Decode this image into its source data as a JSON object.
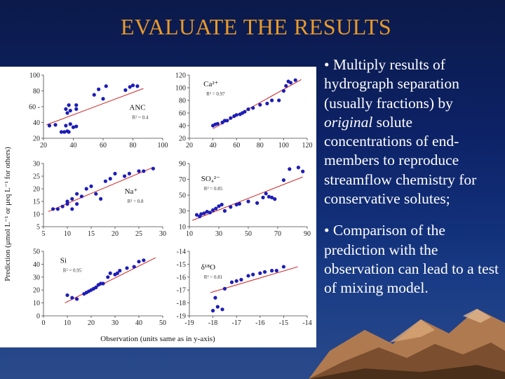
{
  "slide": {
    "title": "EVALUATE THE RESULTS",
    "bullets": [
      [
        "•  Multiply results of hydrograph separation (usually fractions) by ",
        {
          "em": "original"
        },
        " solute concentrations of end-members to reproduce streamflow chemistry for conservative solutes;"
      ],
      [
        "• Comparison of the prediction with the observation can lead to a test of mixing model."
      ]
    ],
    "colors": {
      "title": "#e89a2a",
      "text": "#ffffff",
      "points": "#1d1db8",
      "fit_line": "#cc2222",
      "background": "#0d2266"
    }
  },
  "figure": {
    "y_axis_label": "Prediction (μmol L⁻¹ or μeq L⁻¹ for others)",
    "x_axis_label": "Observation (units same as in y-axis)"
  },
  "chart_data": [
    {
      "type": "scatter",
      "label": "ANC",
      "r2": "R² = 0.4",
      "xlim": [
        20,
        100
      ],
      "ylim": [
        20,
        100
      ],
      "xticks": [
        "20",
        "40",
        "60",
        "80",
        "100"
      ],
      "yticks": [
        "20",
        "40",
        "60 -",
        "80",
        "100"
      ],
      "fit": [
        [
          22,
          37
        ],
        [
          87,
          83
        ]
      ],
      "points": [
        [
          24,
          36
        ],
        [
          28,
          37
        ],
        [
          32,
          28
        ],
        [
          34,
          28
        ],
        [
          36,
          29
        ],
        [
          37,
          28
        ],
        [
          35,
          36
        ],
        [
          38,
          38
        ],
        [
          40,
          34
        ],
        [
          42,
          35
        ],
        [
          35,
          57
        ],
        [
          38,
          55
        ],
        [
          42,
          57
        ],
        [
          36,
          52
        ],
        [
          37,
          62
        ],
        [
          42,
          62
        ],
        [
          54,
          75
        ],
        [
          60,
          70
        ],
        [
          57,
          82
        ],
        [
          62,
          86
        ],
        [
          75,
          81
        ],
        [
          78,
          85
        ],
        [
          80,
          87
        ],
        [
          83,
          86
        ]
      ]
    },
    {
      "type": "scatter",
      "label": "Ca²⁺",
      "r2": "R² = 0.97",
      "xlim": [
        20,
        120
      ],
      "ylim": [
        20,
        120
      ],
      "xticks": [
        "20",
        "40",
        "60",
        "80",
        "100",
        "120"
      ],
      "yticks": [
        "20",
        "40",
        "60",
        "80",
        "100",
        "120"
      ],
      "fit": [
        [
          40,
          35
        ],
        [
          115,
          113
        ]
      ],
      "points": [
        [
          40,
          40
        ],
        [
          42,
          42
        ],
        [
          44,
          43
        ],
        [
          48,
          45
        ],
        [
          50,
          48
        ],
        [
          52,
          48
        ],
        [
          55,
          52
        ],
        [
          58,
          55
        ],
        [
          60,
          57
        ],
        [
          63,
          58
        ],
        [
          65,
          60
        ],
        [
          67,
          62
        ],
        [
          70,
          66
        ],
        [
          74,
          68
        ],
        [
          80,
          73
        ],
        [
          86,
          75
        ],
        [
          90,
          80
        ],
        [
          96,
          80
        ],
        [
          100,
          95
        ],
        [
          102,
          103
        ],
        [
          104,
          110
        ],
        [
          106,
          108
        ],
        [
          110,
          112
        ]
      ]
    },
    {
      "type": "scatter",
      "label": "Na⁺",
      "r2": "R² = 0.8",
      "xlim": [
        5,
        30
      ],
      "ylim": [
        5,
        30
      ],
      "xticks": [
        "5",
        "10",
        "15",
        "20",
        "25",
        "30"
      ],
      "yticks": [
        "5",
        "10",
        "15",
        "20",
        "25",
        "30"
      ],
      "fit": [
        [
          6,
          11
        ],
        [
          28,
          28.5
        ]
      ],
      "points": [
        [
          7,
          12
        ],
        [
          8,
          12
        ],
        [
          9,
          13
        ],
        [
          10,
          14
        ],
        [
          10,
          15
        ],
        [
          11,
          12
        ],
        [
          11,
          16
        ],
        [
          12,
          14
        ],
        [
          12,
          18
        ],
        [
          13,
          17
        ],
        [
          14,
          20
        ],
        [
          15,
          21
        ],
        [
          16,
          18
        ],
        [
          17,
          16
        ],
        [
          18,
          23
        ],
        [
          19,
          24
        ],
        [
          20,
          26
        ],
        [
          22,
          25
        ],
        [
          23,
          26
        ],
        [
          25,
          27
        ],
        [
          26,
          27
        ],
        [
          28,
          28
        ]
      ]
    },
    {
      "type": "scatter",
      "label": "SO₄²⁻",
      "r2": "R² = 0.85",
      "xlim": [
        10,
        90
      ],
      "ylim": [
        10,
        90
      ],
      "xticks": [
        "10",
        "30",
        "50",
        "70",
        "90"
      ],
      "yticks": [
        "10",
        "30",
        "50",
        "70",
        "90"
      ],
      "fit": [
        [
          12,
          18
        ],
        [
          87,
          73
        ]
      ],
      "points": [
        [
          15,
          25
        ],
        [
          17,
          23
        ],
        [
          18,
          26
        ],
        [
          20,
          27
        ],
        [
          22,
          29
        ],
        [
          24,
          28
        ],
        [
          26,
          31
        ],
        [
          28,
          33
        ],
        [
          30,
          36
        ],
        [
          32,
          38
        ],
        [
          34,
          30
        ],
        [
          38,
          35
        ],
        [
          42,
          38
        ],
        [
          44,
          39
        ],
        [
          50,
          42
        ],
        [
          56,
          40
        ],
        [
          60,
          47
        ],
        [
          62,
          52
        ],
        [
          64,
          48
        ],
        [
          66,
          47
        ],
        [
          68,
          45
        ],
        [
          74,
          69
        ],
        [
          78,
          83
        ],
        [
          84,
          85
        ],
        [
          87,
          80
        ]
      ]
    },
    {
      "type": "scatter",
      "label": "Si",
      "r2": "R² = 0.95",
      "xlim": [
        0,
        50
      ],
      "ylim": [
        0,
        50
      ],
      "xticks": [
        "0",
        "10",
        "20",
        "30",
        "40",
        "50"
      ],
      "yticks": [
        "0",
        "10",
        "20",
        "30",
        "40",
        "50"
      ],
      "fit": [
        [
          9,
          10
        ],
        [
          47,
          45
        ]
      ],
      "points": [
        [
          10,
          16
        ],
        [
          12,
          14
        ],
        [
          14,
          13
        ],
        [
          17,
          17
        ],
        [
          18,
          18
        ],
        [
          19,
          19
        ],
        [
          20,
          20
        ],
        [
          21,
          21
        ],
        [
          22,
          22
        ],
        [
          23,
          24
        ],
        [
          24,
          25
        ],
        [
          25,
          25
        ],
        [
          27,
          30
        ],
        [
          28,
          33
        ],
        [
          30,
          32
        ],
        [
          31,
          33
        ],
        [
          32,
          35
        ],
        [
          35,
          37
        ],
        [
          38,
          38
        ],
        [
          40,
          42
        ],
        [
          42,
          43
        ]
      ]
    },
    {
      "type": "scatter",
      "label": "δ¹⁸O",
      "r2": "R² = 0.81",
      "xlim": [
        -19,
        -14
      ],
      "ylim": [
        -19,
        -14
      ],
      "xticks": [
        "-19",
        "-18",
        "-17",
        "-16",
        "-15",
        "-14"
      ],
      "yticks": [
        "-14",
        "-15",
        "-16",
        "-17",
        "-18",
        "-19"
      ],
      "fit": [
        [
          -18.1,
          -17.2
        ],
        [
          -14.4,
          -15.2
        ]
      ],
      "points": [
        [
          -18.0,
          -18.6
        ],
        [
          -17.8,
          -18.3
        ],
        [
          -17.6,
          -18.5
        ],
        [
          -17.9,
          -17.6
        ],
        [
          -17.5,
          -16.9
        ],
        [
          -17.2,
          -16.4
        ],
        [
          -17.0,
          -16.3
        ],
        [
          -16.8,
          -16.2
        ],
        [
          -16.5,
          -15.9
        ],
        [
          -16.3,
          -15.8
        ],
        [
          -16.0,
          -15.7
        ],
        [
          -15.8,
          -15.6
        ],
        [
          -15.5,
          -15.5
        ],
        [
          -15.3,
          -15.5
        ],
        [
          -15.0,
          -15.2
        ]
      ]
    }
  ]
}
